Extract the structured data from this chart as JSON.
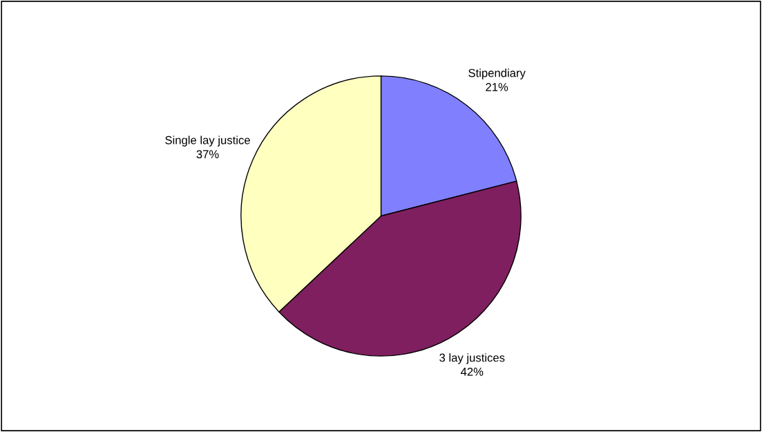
{
  "chart_data": {
    "type": "pie",
    "categories": [
      "Stipendiary",
      "3 lay justices",
      "Single lay justice"
    ],
    "values": [
      21,
      42,
      37
    ],
    "value_labels": [
      "21%",
      "42%",
      "37%"
    ],
    "colors": [
      "#8080ff",
      "#7f1f5f",
      "#ffffc0"
    ],
    "legend": false
  }
}
